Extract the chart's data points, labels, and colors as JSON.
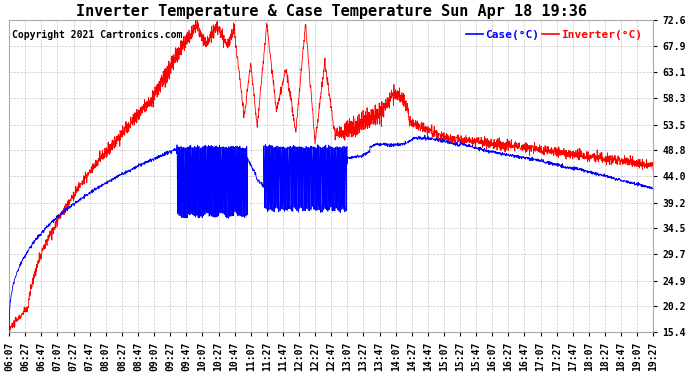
{
  "title": "Inverter Temperature & Case Temperature Sun Apr 18 19:36",
  "copyright": "Copyright 2021 Cartronics.com",
  "legend_case": "Case(°C)",
  "legend_inverter": "Inverter(°C)",
  "ylabel_right_ticks": [
    15.4,
    20.2,
    24.9,
    29.7,
    34.5,
    39.2,
    44.0,
    48.8,
    53.5,
    58.3,
    63.1,
    67.9,
    72.6
  ],
  "ylim": [
    15.4,
    72.6
  ],
  "x_tick_labels": [
    "06:07",
    "06:27",
    "06:47",
    "07:07",
    "07:27",
    "07:47",
    "08:07",
    "08:27",
    "08:47",
    "09:07",
    "09:27",
    "09:47",
    "10:07",
    "10:27",
    "10:47",
    "11:07",
    "11:27",
    "11:47",
    "12:07",
    "12:27",
    "12:47",
    "13:07",
    "13:27",
    "13:47",
    "14:07",
    "14:27",
    "14:47",
    "15:07",
    "15:27",
    "15:47",
    "16:07",
    "16:27",
    "16:47",
    "17:07",
    "17:27",
    "17:47",
    "18:07",
    "18:27",
    "18:47",
    "19:07",
    "19:27"
  ],
  "color_case": "#0000ff",
  "color_inverter": "#ff0000",
  "bg_color": "#ffffff",
  "grid_color": "#c8c8c8",
  "title_fontsize": 11,
  "copyright_fontsize": 7,
  "legend_fontsize": 8,
  "tick_fontsize": 7
}
